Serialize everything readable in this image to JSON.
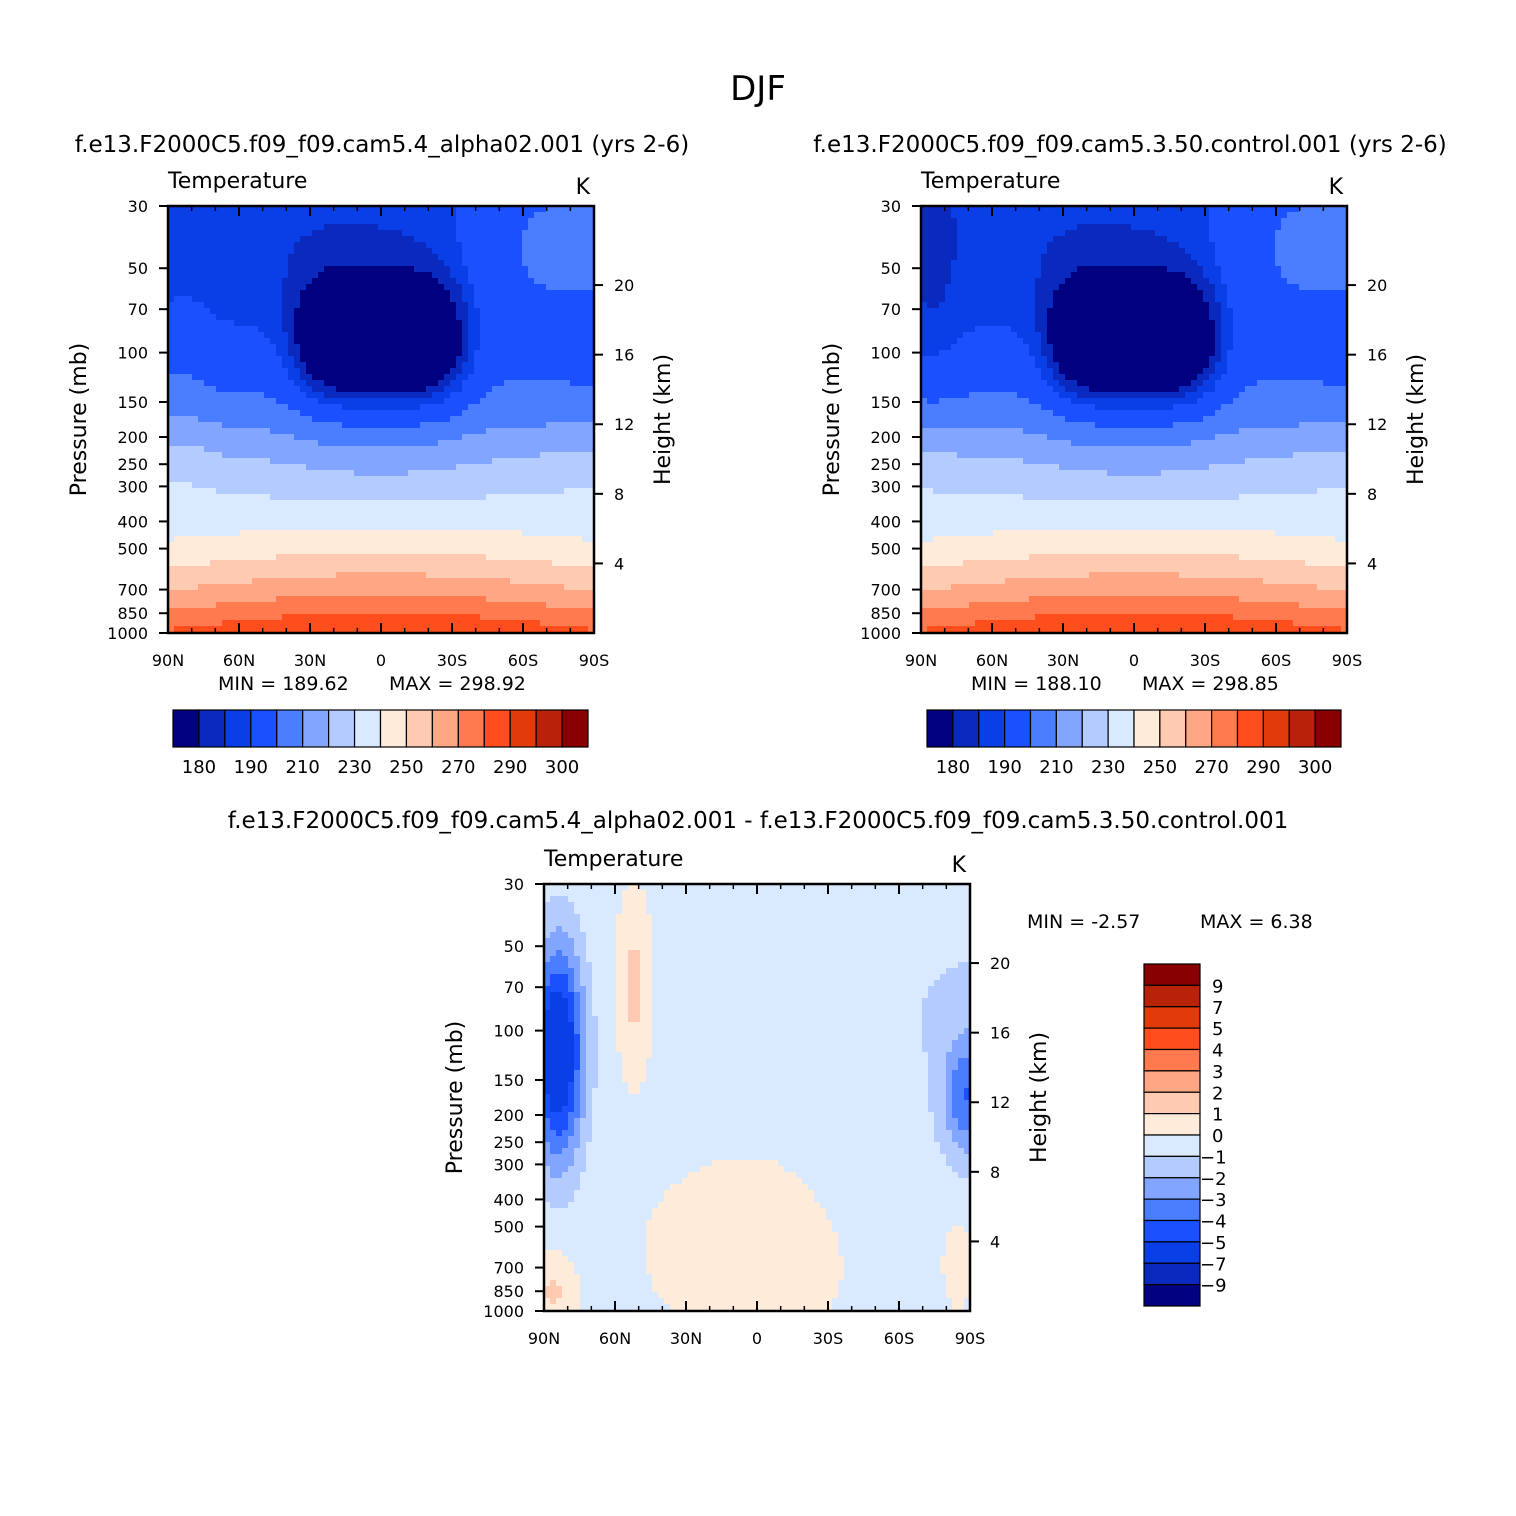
{
  "figure_title": "DJF",
  "chart_data": [
    {
      "type": "heatmap",
      "subtitle": "f.e13.F2000C5.f09_f09.cam5.4_alpha02.001  (yrs  2-6)",
      "left_title": "Temperature",
      "right_title": "K",
      "ylabel": "Pressure  (mb)",
      "ylabel_right": "Height  (km)",
      "xlabel": "",
      "x_ticks": [
        "90N",
        "60N",
        "30N",
        "0",
        "30S",
        "60S",
        "90S"
      ],
      "x_range": [
        90,
        -90
      ],
      "y_ticks": [
        30,
        50,
        70,
        100,
        150,
        200,
        250,
        300,
        400,
        500,
        700,
        850,
        1000
      ],
      "y_range": [
        1000,
        30
      ],
      "y_scale": "log",
      "y_right_ticks": [
        4,
        8,
        12,
        16,
        20
      ],
      "min_label": "MIN  =  189.62",
      "max_label": "MAX  =  298.92",
      "min": 189.62,
      "max": 298.92,
      "colorbar": {
        "orientation": "horizontal",
        "labels": [
          "180",
          "190",
          "210",
          "230",
          "250",
          "270",
          "290",
          "300"
        ],
        "colors": [
          "#000080",
          "#0a2abf",
          "#0a3ee6",
          "#1a50ff",
          "#4a7dff",
          "#82a6ff",
          "#b4cbff",
          "#d9e9ff",
          "#ffebd9",
          "#ffcab2",
          "#ffa684",
          "#ff7a4f",
          "#ff4e1e",
          "#e33a0a",
          "#b82208",
          "#880000"
        ]
      },
      "field": {
        "kind": "temperature",
        "variant": "alpha",
        "levels": [
          180,
          185,
          190,
          200,
          210,
          220,
          230,
          240,
          250,
          260,
          270,
          280,
          290,
          295,
          300
        ]
      }
    },
    {
      "type": "heatmap",
      "subtitle": "f.e13.F2000C5.f09_f09.cam5.3.50.control.001  (yrs  2-6)",
      "left_title": "Temperature",
      "right_title": "K",
      "ylabel": "Pressure  (mb)",
      "ylabel_right": "Height  (km)",
      "xlabel": "",
      "x_ticks": [
        "90N",
        "60N",
        "30N",
        "0",
        "30S",
        "60S",
        "90S"
      ],
      "x_range": [
        90,
        -90
      ],
      "y_ticks": [
        30,
        50,
        70,
        100,
        150,
        200,
        250,
        300,
        400,
        500,
        700,
        850,
        1000
      ],
      "y_range": [
        1000,
        30
      ],
      "y_scale": "log",
      "y_right_ticks": [
        4,
        8,
        12,
        16,
        20
      ],
      "min_label": "MIN  =  188.10",
      "max_label": "MAX  =  298.85",
      "min": 188.1,
      "max": 298.85,
      "colorbar": {
        "orientation": "horizontal",
        "labels": [
          "180",
          "190",
          "210",
          "230",
          "250",
          "270",
          "290",
          "300"
        ],
        "colors": [
          "#000080",
          "#0a2abf",
          "#0a3ee6",
          "#1a50ff",
          "#4a7dff",
          "#82a6ff",
          "#b4cbff",
          "#d9e9ff",
          "#ffebd9",
          "#ffcab2",
          "#ffa684",
          "#ff7a4f",
          "#ff4e1e",
          "#e33a0a",
          "#b82208",
          "#880000"
        ]
      },
      "field": {
        "kind": "temperature",
        "variant": "control",
        "levels": [
          180,
          185,
          190,
          200,
          210,
          220,
          230,
          240,
          250,
          260,
          270,
          280,
          290,
          295,
          300
        ]
      }
    },
    {
      "type": "heatmap",
      "subtitle": "f.e13.F2000C5.f09_f09.cam5.4_alpha02.001  -  f.e13.F2000C5.f09_f09.cam5.3.50.control.001",
      "left_title": "Temperature",
      "right_title": "K",
      "ylabel": "Pressure  (mb)",
      "ylabel_right": "Height  (km)",
      "xlabel": "",
      "x_ticks": [
        "90N",
        "60N",
        "30N",
        "0",
        "30S",
        "60S",
        "90S"
      ],
      "x_range": [
        90,
        -90
      ],
      "y_ticks": [
        30,
        50,
        70,
        100,
        150,
        200,
        250,
        300,
        400,
        500,
        700,
        850,
        1000
      ],
      "y_range": [
        1000,
        30
      ],
      "y_scale": "log",
      "y_right_ticks": [
        4,
        8,
        12,
        16,
        20
      ],
      "min_label": "MIN  =    -2.57",
      "max_label": "MAX  =      6.38",
      "min": -2.57,
      "max": 6.38,
      "colorbar": {
        "orientation": "vertical",
        "labels": [
          "9",
          "7",
          "5",
          "4",
          "3",
          "2",
          "1",
          "0",
          "-1",
          "-2",
          "-3",
          "-4",
          "-5",
          "-7",
          "-9"
        ],
        "colors": [
          "#880000",
          "#b82208",
          "#e33a0a",
          "#ff4e1e",
          "#ff7a4f",
          "#ffa684",
          "#ffcab2",
          "#ffebd9",
          "#d9e9ff",
          "#b4cbff",
          "#82a6ff",
          "#4a7dff",
          "#1a50ff",
          "#0a3ee6",
          "#0a2abf",
          "#000080"
        ]
      },
      "field": {
        "kind": "difference",
        "levels": [
          -9,
          -7,
          -5,
          -4,
          -3,
          -2,
          -1,
          0,
          1,
          2,
          3,
          4,
          5,
          7,
          9
        ]
      }
    }
  ]
}
